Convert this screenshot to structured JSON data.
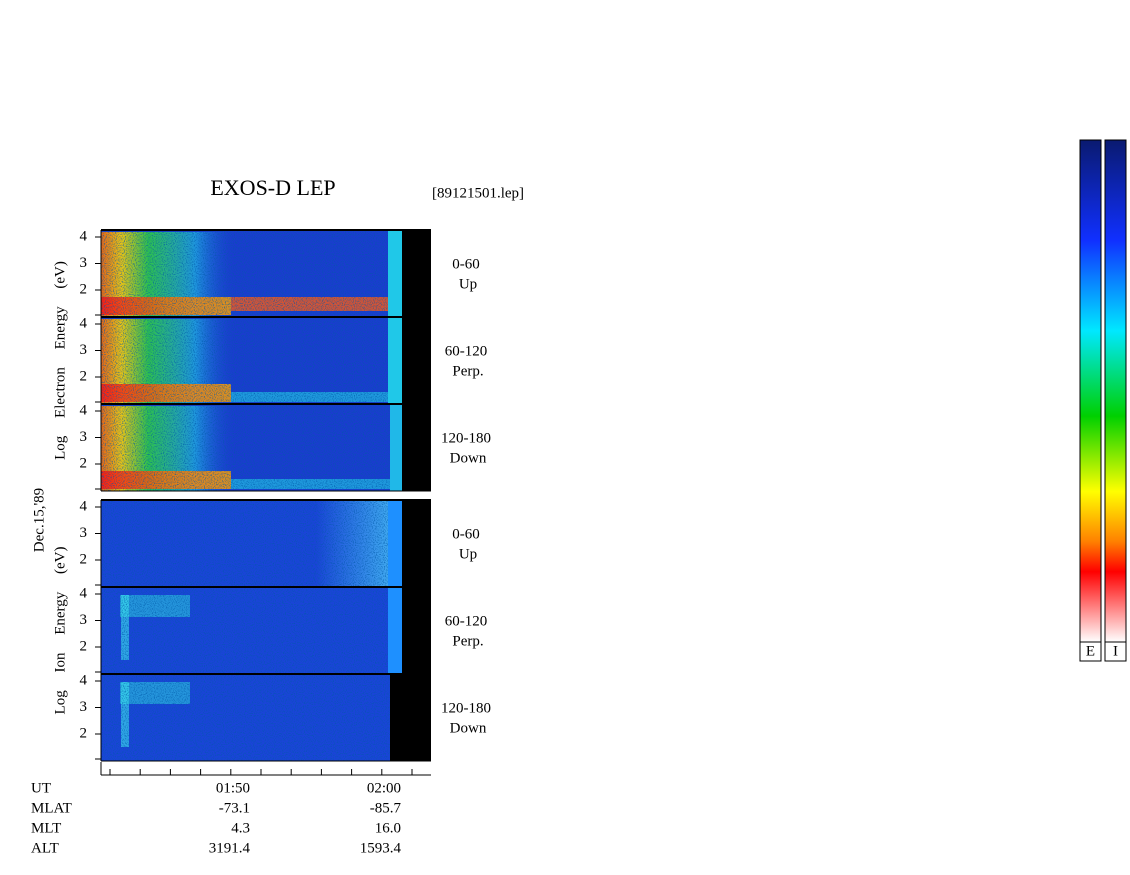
{
  "title": "EXOS-D LEP",
  "file": "[89121501.lep]",
  "date": "Dec.15,'89",
  "electron": {
    "axis_label": "Log Electron Energy (eV)",
    "panels": [
      {
        "range": "0-60",
        "direction": "Up"
      },
      {
        "range": "60-120",
        "direction": "Perp."
      },
      {
        "range": "120-180",
        "direction": "Down"
      }
    ]
  },
  "ion": {
    "axis_label": "Log Ion Energy (eV)",
    "panels": [
      {
        "range": "0-60",
        "direction": "Up"
      },
      {
        "range": "60-120",
        "direction": "Perp."
      },
      {
        "range": "120-180",
        "direction": "Down"
      }
    ]
  },
  "yticks": [
    2,
    3,
    4
  ],
  "orbit": {
    "rows": [
      "UT",
      "MLAT",
      "MLT",
      "ALT"
    ],
    "columns": [
      [
        "01:50",
        "-73.1",
        "4.3",
        "3191.4"
      ],
      [
        "02:00",
        "-85.7",
        "16.0",
        "1593.4"
      ]
    ]
  },
  "colorbar_labels": [
    "E",
    "I"
  ]
}
